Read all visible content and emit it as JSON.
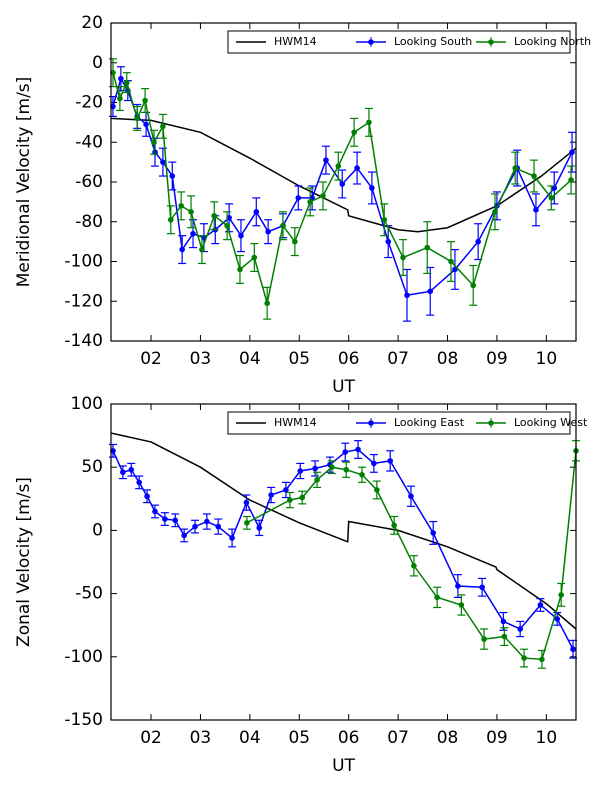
{
  "chart_data": [
    {
      "type": "line",
      "ylabel": "Meridional Velocity [m/s]",
      "xlabel": "UT",
      "xlim": [
        1.19,
        10.6
      ],
      "ylim": [
        -140,
        20
      ],
      "xticks": [
        {
          "value": 2,
          "label": "02"
        },
        {
          "value": 3,
          "label": "03"
        },
        {
          "value": 4,
          "label": "04"
        },
        {
          "value": 5,
          "label": "05"
        },
        {
          "value": 6,
          "label": "06"
        },
        {
          "value": 7,
          "label": "07"
        },
        {
          "value": 8,
          "label": "08"
        },
        {
          "value": 9,
          "label": "09"
        },
        {
          "value": 10,
          "label": "10"
        }
      ],
      "yticks": [
        -140,
        -120,
        -100,
        -80,
        -60,
        -40,
        -20,
        0,
        20
      ],
      "legend": "upper right",
      "series": [
        {
          "name": "HWM14",
          "color": "#000000",
          "x": [
            1.19,
            2,
            3,
            4,
            5,
            5.98,
            6.0,
            7,
            7.4,
            8,
            9,
            9.9,
            10.6
          ],
          "values": [
            -28,
            -29,
            -35,
            -48,
            -62,
            -74,
            -77,
            -84,
            -85,
            -83,
            -72,
            -57,
            -43
          ]
        },
        {
          "name": "Looking South",
          "color": "#0000ff",
          "x": [
            1.23,
            1.39,
            1.53,
            1.72,
            1.9,
            2.08,
            2.24,
            2.43,
            2.63,
            2.85,
            3.07,
            3.3,
            3.58,
            3.82,
            4.13,
            4.37,
            4.67,
            4.98,
            5.26,
            5.54,
            5.87,
            6.17,
            6.47,
            6.8,
            7.18,
            7.65,
            8.15,
            8.62,
            9.0,
            9.41,
            9.79,
            10.16,
            10.52
          ],
          "values": [
            -22,
            -8,
            -14,
            -27,
            -31,
            -45,
            -50,
            -57,
            -94,
            -86,
            -88,
            -84,
            -78,
            -87,
            -75,
            -85,
            -82,
            -68,
            -68,
            -49,
            -61,
            -53,
            -63,
            -90,
            -117,
            -115,
            -104,
            -90,
            -72,
            -53,
            -74,
            -63,
            -45
          ],
          "errors": [
            5,
            6,
            5,
            6,
            6,
            7,
            7,
            7,
            7,
            7,
            7,
            7,
            7,
            8,
            7,
            6,
            6,
            6,
            6,
            7,
            7,
            8,
            8,
            8,
            13,
            12,
            10,
            9,
            7,
            9,
            8,
            8,
            10
          ]
        },
        {
          "name": "Looking North",
          "color": "#008000",
          "x": [
            1.23,
            1.37,
            1.51,
            1.72,
            1.88,
            2.06,
            2.24,
            2.4,
            2.61,
            2.81,
            3.03,
            3.28,
            3.54,
            3.8,
            4.09,
            4.35,
            4.67,
            4.91,
            5.22,
            5.48,
            5.79,
            6.11,
            6.41,
            6.72,
            7.1,
            7.59,
            8.07,
            8.52,
            8.96,
            9.37,
            9.75,
            10.1,
            10.5
          ],
          "values": [
            -5,
            -18,
            -10,
            -28,
            -19,
            -40,
            -32,
            -79,
            -72,
            -75,
            -94,
            -77,
            -82,
            -104,
            -98,
            -121,
            -82,
            -90,
            -70,
            -67,
            -52,
            -35,
            -30,
            -79,
            -98,
            -93,
            -100,
            -112,
            -75,
            -53,
            -57,
            -68,
            -59
          ],
          "errors": [
            7,
            6,
            5,
            6,
            6,
            6,
            6,
            7,
            7,
            8,
            7,
            7,
            7,
            7,
            7,
            8,
            7,
            7,
            7,
            7,
            7,
            7,
            7,
            8,
            9,
            13,
            10,
            10,
            9,
            8,
            8,
            6,
            7
          ]
        }
      ]
    },
    {
      "type": "line",
      "ylabel": "Zonal Velocity [m/s]",
      "xlabel": "UT",
      "xlim": [
        1.19,
        10.6
      ],
      "ylim": [
        -150,
        100
      ],
      "xticks": [
        {
          "value": 2,
          "label": "02"
        },
        {
          "value": 3,
          "label": "03"
        },
        {
          "value": 4,
          "label": "04"
        },
        {
          "value": 5,
          "label": "05"
        },
        {
          "value": 6,
          "label": "06"
        },
        {
          "value": 7,
          "label": "07"
        },
        {
          "value": 8,
          "label": "08"
        },
        {
          "value": 9,
          "label": "09"
        },
        {
          "value": 10,
          "label": "10"
        }
      ],
      "yticks": [
        -150,
        -100,
        -50,
        0,
        50,
        100
      ],
      "legend": "upper right",
      "series": [
        {
          "name": "HWM14",
          "color": "#000000",
          "x": [
            1.19,
            2,
            3,
            4,
            5,
            5.98,
            6.0,
            7,
            8,
            8.98,
            9.0,
            10,
            10.6
          ],
          "values": [
            77,
            70,
            50,
            24,
            6,
            -9,
            7,
            0,
            -13,
            -29,
            -31,
            -58,
            -78
          ]
        },
        {
          "name": "Looking East",
          "color": "#0000ff",
          "x": [
            1.23,
            1.43,
            1.6,
            1.76,
            1.92,
            2.08,
            2.28,
            2.49,
            2.67,
            2.89,
            3.13,
            3.36,
            3.64,
            3.93,
            4.19,
            4.43,
            4.73,
            5.02,
            5.32,
            5.62,
            5.93,
            6.19,
            6.51,
            6.84,
            7.26,
            7.71,
            8.21,
            8.7,
            9.13,
            9.47,
            9.88,
            10.22,
            10.54
          ],
          "values": [
            63,
            46,
            48,
            38,
            27,
            15,
            9,
            8,
            -4,
            3,
            7,
            3,
            -6,
            22,
            2,
            28,
            32,
            47,
            49,
            52,
            62,
            64,
            53,
            55,
            27,
            -2,
            -44,
            -45,
            -72,
            -78,
            -59,
            -70,
            -94
          ],
          "errors": [
            5,
            5,
            5,
            5,
            5,
            5,
            5,
            5,
            5,
            5,
            6,
            6,
            7,
            6,
            6,
            6,
            6,
            6,
            6,
            6,
            7,
            7,
            7,
            8,
            8,
            9,
            9,
            7,
            7,
            6,
            5,
            5,
            7
          ]
        },
        {
          "name": "Looking West",
          "color": "#008000",
          "x": [
            3.94,
            4.81,
            5.06,
            5.36,
            5.66,
            5.95,
            6.27,
            6.57,
            6.92,
            7.32,
            7.79,
            8.28,
            8.74,
            9.15,
            9.55,
            9.91,
            10.3,
            10.6
          ],
          "values": [
            6,
            24,
            26,
            40,
            50,
            48,
            44,
            32,
            4,
            -28,
            -53,
            -59,
            -86,
            -84,
            -101,
            -102,
            -51,
            63
          ],
          "errors": [
            5,
            6,
            5,
            6,
            5,
            6,
            6,
            7,
            7,
            8,
            8,
            8,
            8,
            7,
            7,
            7,
            9,
            8
          ]
        }
      ]
    }
  ]
}
